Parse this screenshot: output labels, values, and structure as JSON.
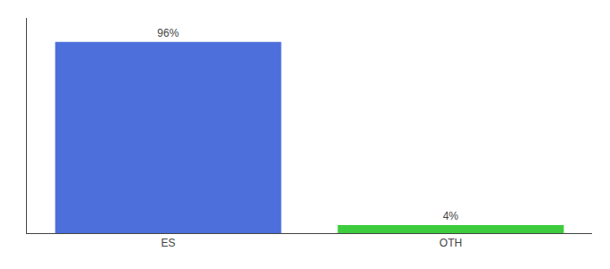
{
  "chart_data": {
    "type": "bar",
    "categories": [
      "ES",
      "OTH"
    ],
    "values": [
      96,
      4
    ],
    "value_labels": [
      "96%",
      "4%"
    ],
    "colors": [
      "#4d6fdb",
      "#3dcc3d"
    ],
    "ylim": [
      0,
      108
    ],
    "tick_labels": "x",
    "grid": false,
    "data_labels": true
  }
}
